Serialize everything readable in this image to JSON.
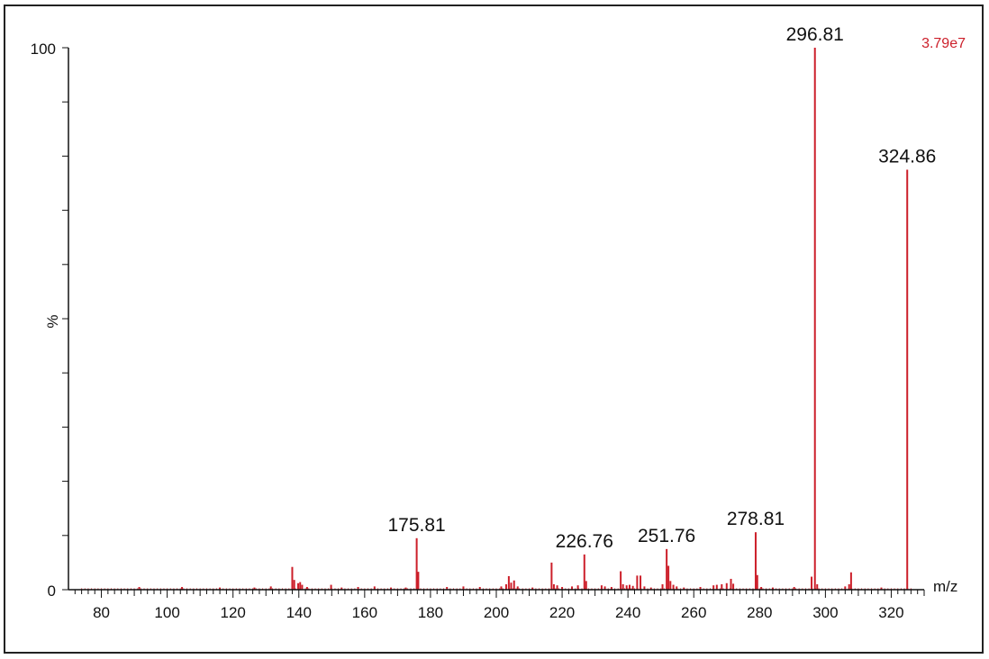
{
  "chart_data": {
    "type": "bar",
    "ylabel": "%",
    "xlabel": "m/z",
    "intensity_label": "3.79e7",
    "xlim": [
      70,
      330
    ],
    "ylim": [
      0,
      100
    ],
    "x_ticks": [
      80,
      100,
      120,
      140,
      160,
      180,
      200,
      220,
      240,
      260,
      280,
      300,
      320
    ],
    "y_ticks": [
      0,
      100
    ],
    "peak_labels": [
      {
        "text": "296.81",
        "x": 296.81,
        "y": 100
      },
      {
        "text": "324.86",
        "x": 324.86,
        "y": 77.5
      },
      {
        "text": "175.81",
        "x": 175.81,
        "y": 9.5
      },
      {
        "text": "226.76",
        "x": 226.76,
        "y": 6.5
      },
      {
        "text": "251.76",
        "x": 251.76,
        "y": 7.5
      },
      {
        "text": "278.81",
        "x": 278.81,
        "y": 10.6
      }
    ],
    "peaks": [
      {
        "x": 91.5,
        "y": 0.5
      },
      {
        "x": 104.5,
        "y": 0.5
      },
      {
        "x": 116,
        "y": 0.4
      },
      {
        "x": 126.5,
        "y": 0.4
      },
      {
        "x": 131.5,
        "y": 0.6
      },
      {
        "x": 138,
        "y": 4.2
      },
      {
        "x": 138.6,
        "y": 1.8
      },
      {
        "x": 139.8,
        "y": 1.2
      },
      {
        "x": 140.4,
        "y": 1.4
      },
      {
        "x": 141,
        "y": 0.9
      },
      {
        "x": 142.5,
        "y": 0.5
      },
      {
        "x": 149.8,
        "y": 0.9
      },
      {
        "x": 153,
        "y": 0.4
      },
      {
        "x": 158,
        "y": 0.5
      },
      {
        "x": 163,
        "y": 0.6
      },
      {
        "x": 168,
        "y": 0.4
      },
      {
        "x": 172.5,
        "y": 0.4
      },
      {
        "x": 175.81,
        "y": 9.5
      },
      {
        "x": 176.3,
        "y": 3.3
      },
      {
        "x": 185,
        "y": 0.5
      },
      {
        "x": 190,
        "y": 0.6
      },
      {
        "x": 195,
        "y": 0.5
      },
      {
        "x": 201.5,
        "y": 0.6
      },
      {
        "x": 203,
        "y": 1.0
      },
      {
        "x": 203.8,
        "y": 2.5
      },
      {
        "x": 204.5,
        "y": 1.3
      },
      {
        "x": 205.4,
        "y": 1.7
      },
      {
        "x": 206.5,
        "y": 0.6
      },
      {
        "x": 211,
        "y": 0.4
      },
      {
        "x": 216.8,
        "y": 5.0
      },
      {
        "x": 217.5,
        "y": 1.0
      },
      {
        "x": 218.5,
        "y": 0.8
      },
      {
        "x": 220,
        "y": 0.5
      },
      {
        "x": 223,
        "y": 0.6
      },
      {
        "x": 224.8,
        "y": 0.8
      },
      {
        "x": 226.76,
        "y": 6.5
      },
      {
        "x": 227.3,
        "y": 1.6
      },
      {
        "x": 232,
        "y": 0.8
      },
      {
        "x": 233,
        "y": 0.6
      },
      {
        "x": 235,
        "y": 0.5
      },
      {
        "x": 237.8,
        "y": 3.4
      },
      {
        "x": 238.5,
        "y": 1.0
      },
      {
        "x": 239.6,
        "y": 0.8
      },
      {
        "x": 240.5,
        "y": 0.9
      },
      {
        "x": 241.5,
        "y": 0.7
      },
      {
        "x": 242.8,
        "y": 2.6
      },
      {
        "x": 243.8,
        "y": 2.6
      },
      {
        "x": 245,
        "y": 0.6
      },
      {
        "x": 247,
        "y": 0.4
      },
      {
        "x": 250.5,
        "y": 1.0
      },
      {
        "x": 251.76,
        "y": 7.5
      },
      {
        "x": 252.3,
        "y": 4.4
      },
      {
        "x": 252.9,
        "y": 1.6
      },
      {
        "x": 253.8,
        "y": 0.9
      },
      {
        "x": 254.8,
        "y": 0.6
      },
      {
        "x": 257,
        "y": 0.4
      },
      {
        "x": 262,
        "y": 0.5
      },
      {
        "x": 266,
        "y": 0.8
      },
      {
        "x": 267,
        "y": 0.9
      },
      {
        "x": 268.5,
        "y": 1.0
      },
      {
        "x": 270,
        "y": 1.2
      },
      {
        "x": 271.3,
        "y": 2.0
      },
      {
        "x": 272,
        "y": 1.1
      },
      {
        "x": 278.81,
        "y": 10.6
      },
      {
        "x": 279.3,
        "y": 2.7
      },
      {
        "x": 280.5,
        "y": 0.5
      },
      {
        "x": 284,
        "y": 0.4
      },
      {
        "x": 290.5,
        "y": 0.5
      },
      {
        "x": 295.8,
        "y": 2.4
      },
      {
        "x": 296.81,
        "y": 100
      },
      {
        "x": 297.5,
        "y": 1.0
      },
      {
        "x": 306,
        "y": 0.6
      },
      {
        "x": 307.2,
        "y": 1.0
      },
      {
        "x": 307.8,
        "y": 3.2
      },
      {
        "x": 317,
        "y": 0.4
      },
      {
        "x": 324.86,
        "y": 77.5
      }
    ],
    "colors": {
      "peaks": "#cc1f2a",
      "intensity_label": "#cc1f2a",
      "axis": "#111111",
      "text": "#111111"
    }
  }
}
